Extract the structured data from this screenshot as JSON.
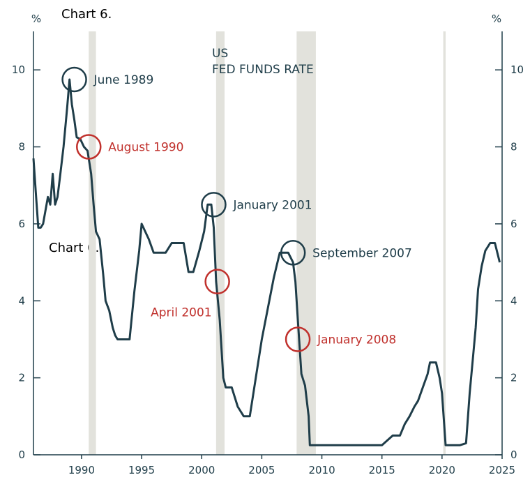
{
  "captions": [
    "Chart 6.",
    "Chart 6."
  ],
  "chart_data": {
    "type": "line",
    "title": "US FED FUNDS RATE",
    "title_lines": [
      "US",
      "FED FUNDS RATE"
    ],
    "ylabel_left": "%",
    "ylabel_right": "%",
    "xlim": [
      1986,
      2025
    ],
    "ylim": [
      0,
      11
    ],
    "x_ticks": [
      1990,
      1995,
      2000,
      2005,
      2010,
      2015,
      2020,
      2025
    ],
    "y_ticks": [
      0,
      2,
      4,
      6,
      8,
      10
    ],
    "grid": false,
    "colors": {
      "line": "#1f3d49",
      "shade": "#e2e2dc",
      "peak": "#1f3d49",
      "cut": "#c0302c"
    },
    "recessions": [
      [
        1990.6,
        1991.2
      ],
      [
        2001.2,
        2001.9
      ],
      [
        2007.9,
        2009.5
      ],
      [
        2020.1,
        2020.3
      ]
    ],
    "series": [
      {
        "x": [
          1986.0,
          1986.2,
          1986.4,
          1986.6,
          1986.8,
          1987.2,
          1987.4,
          1987.6,
          1987.8,
          1988.0,
          1988.2,
          1988.5,
          1988.8,
          1989.0,
          1989.2,
          1989.4,
          1989.6,
          1989.9,
          1990.2,
          1990.5,
          1990.8,
          1991.0,
          1991.2,
          1991.5,
          1991.8,
          1992.0,
          1992.3,
          1992.6,
          1992.8,
          1993.0,
          1993.5,
          1994.0,
          1994.4,
          1994.8,
          1995.0,
          1995.3,
          1995.6,
          1996.0,
          1997.0,
          1997.5,
          1998.0,
          1998.5,
          1998.9,
          1999.3,
          1999.8,
          2000.2,
          2000.5,
          2000.8,
          2001.0,
          2001.2,
          2001.5,
          2001.8,
          2002.0,
          2002.5,
          2003.0,
          2003.5,
          2004.0,
          2004.5,
          2005.0,
          2005.5,
          2006.0,
          2006.5,
          2006.8,
          2007.2,
          2007.6,
          2007.8,
          2008.0,
          2008.3,
          2008.6,
          2008.9,
          2009.0,
          2010.0,
          2012.0,
          2015.0,
          2015.9,
          2016.5,
          2016.9,
          2017.3,
          2017.7,
          2018.0,
          2018.4,
          2018.8,
          2019.0,
          2019.5,
          2019.8,
          2020.0,
          2020.3,
          2021.0,
          2021.5,
          2022.0,
          2022.3,
          2022.6,
          2022.8,
          2023.0,
          2023.3,
          2023.6,
          2024.0,
          2024.4,
          2024.8
        ],
        "y": [
          7.7,
          6.8,
          5.9,
          5.9,
          6.0,
          6.7,
          6.5,
          7.3,
          6.5,
          6.7,
          7.2,
          8.0,
          9.0,
          9.75,
          9.1,
          8.7,
          8.25,
          8.2,
          8.0,
          7.9,
          7.3,
          6.5,
          5.8,
          5.6,
          4.7,
          4.0,
          3.75,
          3.3,
          3.1,
          3.0,
          3.0,
          3.0,
          4.25,
          5.3,
          6.0,
          5.8,
          5.6,
          5.25,
          5.25,
          5.5,
          5.5,
          5.5,
          4.75,
          4.75,
          5.3,
          5.8,
          6.5,
          6.5,
          5.9,
          4.5,
          3.5,
          2.0,
          1.75,
          1.75,
          1.25,
          1.0,
          1.0,
          2.0,
          3.0,
          3.8,
          4.6,
          5.25,
          5.25,
          5.25,
          5.0,
          4.5,
          3.5,
          2.1,
          1.8,
          1.0,
          0.25,
          0.25,
          0.25,
          0.25,
          0.5,
          0.5,
          0.8,
          1.0,
          1.25,
          1.4,
          1.75,
          2.1,
          2.4,
          2.4,
          2.0,
          1.6,
          0.25,
          0.25,
          0.25,
          0.3,
          1.6,
          2.6,
          3.3,
          4.3,
          4.9,
          5.3,
          5.5,
          5.5,
          5.0
        ]
      }
    ],
    "annotations": [
      {
        "label": "June 1989",
        "x": 1989.4,
        "y": 9.75,
        "kind": "peak",
        "side": "right"
      },
      {
        "label": "August 1990",
        "x": 1990.6,
        "y": 8.0,
        "kind": "cut",
        "side": "right"
      },
      {
        "label": "January 2001",
        "x": 2001.0,
        "y": 6.5,
        "kind": "peak",
        "side": "right"
      },
      {
        "label": "April 2001",
        "x": 2001.3,
        "y": 4.5,
        "kind": "cut",
        "side": "below-left"
      },
      {
        "label": "September 2007",
        "x": 2007.6,
        "y": 5.25,
        "kind": "peak",
        "side": "right"
      },
      {
        "label": "January 2008",
        "x": 2008.0,
        "y": 3.0,
        "kind": "cut",
        "side": "right"
      }
    ]
  }
}
